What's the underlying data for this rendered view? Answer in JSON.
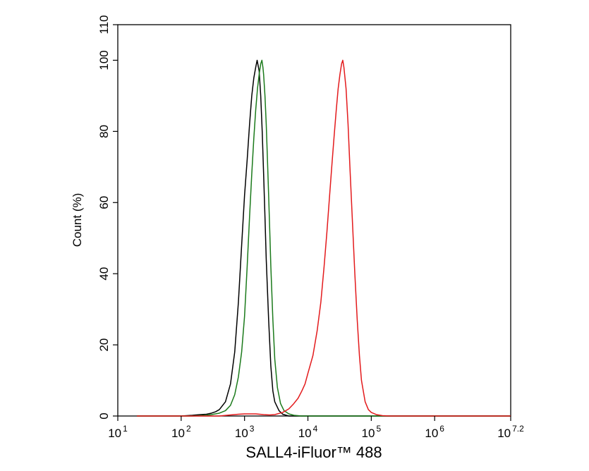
{
  "chart_data": {
    "type": "line",
    "title": "",
    "xlabel": "SALL4-iFluor™ 488",
    "ylabel": "Count  (%)",
    "x_scale": "log10",
    "xlim": [
      10,
      15848931.92
    ],
    "ylim": [
      0,
      110
    ],
    "x_ticks": [
      {
        "base": "10",
        "exp": "1",
        "value": 10
      },
      {
        "base": "10",
        "exp": "2",
        "value": 100
      },
      {
        "base": "10",
        "exp": "3",
        "value": 1000
      },
      {
        "base": "10",
        "exp": "4",
        "value": 10000
      },
      {
        "base": "10",
        "exp": "5",
        "value": 100000
      },
      {
        "base": "10",
        "exp": "6",
        "value": 1000000
      },
      {
        "base": "10",
        "exp": "7.2",
        "value": 15848931.92
      }
    ],
    "y_ticks": [
      {
        "label": "0",
        "value": 0
      },
      {
        "label": "20",
        "value": 20
      },
      {
        "label": "40",
        "value": 40
      },
      {
        "label": "60",
        "value": 60
      },
      {
        "label": "80",
        "value": 80
      },
      {
        "label": "100",
        "value": 100
      },
      {
        "label": "110",
        "value": 110
      }
    ],
    "grid": false,
    "legend": "none",
    "series": [
      {
        "color": "#000000",
        "points": [
          [
            20,
            0
          ],
          [
            100,
            0
          ],
          [
            150,
            0.2
          ],
          [
            200,
            0.4
          ],
          [
            250,
            0.5
          ],
          [
            300,
            0.8
          ],
          [
            350,
            1.2
          ],
          [
            400,
            1.8
          ],
          [
            500,
            4
          ],
          [
            600,
            9
          ],
          [
            700,
            18
          ],
          [
            800,
            32
          ],
          [
            900,
            48
          ],
          [
            1000,
            62
          ],
          [
            1100,
            72
          ],
          [
            1200,
            82
          ],
          [
            1300,
            90
          ],
          [
            1400,
            95
          ],
          [
            1500,
            98
          ],
          [
            1580,
            100
          ],
          [
            1700,
            97
          ],
          [
            1800,
            90
          ],
          [
            1900,
            80
          ],
          [
            2000,
            68
          ],
          [
            2100,
            56
          ],
          [
            2200,
            44
          ],
          [
            2400,
            27
          ],
          [
            2600,
            14
          ],
          [
            2800,
            7
          ],
          [
            3000,
            4
          ],
          [
            3500,
            1.5
          ],
          [
            4000,
            0.5
          ],
          [
            5000,
            0
          ],
          [
            15848931,
            0
          ]
        ]
      },
      {
        "color": "#1b7a1b",
        "points": [
          [
            20,
            0
          ],
          [
            150,
            0
          ],
          [
            250,
            0.2
          ],
          [
            300,
            0.4
          ],
          [
            400,
            0.8
          ],
          [
            500,
            1.5
          ],
          [
            600,
            3
          ],
          [
            700,
            6
          ],
          [
            800,
            11
          ],
          [
            900,
            18
          ],
          [
            1000,
            28
          ],
          [
            1100,
            42
          ],
          [
            1200,
            56
          ],
          [
            1300,
            68
          ],
          [
            1400,
            78
          ],
          [
            1500,
            86
          ],
          [
            1600,
            92
          ],
          [
            1700,
            96
          ],
          [
            1800,
            99
          ],
          [
            1880,
            100
          ],
          [
            1950,
            98
          ],
          [
            2000,
            96
          ],
          [
            2100,
            90
          ],
          [
            2200,
            82
          ],
          [
            2300,
            72
          ],
          [
            2400,
            62
          ],
          [
            2500,
            52
          ],
          [
            2600,
            42
          ],
          [
            2800,
            27
          ],
          [
            3000,
            16
          ],
          [
            3300,
            8
          ],
          [
            3700,
            3.5
          ],
          [
            4200,
            1.5
          ],
          [
            5000,
            0.6
          ],
          [
            6000,
            0.2
          ],
          [
            8000,
            0
          ],
          [
            15848931,
            0
          ]
        ]
      },
      {
        "color": "#e31a1c",
        "points": [
          [
            20,
            0
          ],
          [
            400,
            0
          ],
          [
            600,
            0.3
          ],
          [
            800,
            0.5
          ],
          [
            1000,
            0.6
          ],
          [
            1500,
            0.6
          ],
          [
            2000,
            0.4
          ],
          [
            2500,
            0.3
          ],
          [
            3000,
            0.4
          ],
          [
            4000,
            1
          ],
          [
            5000,
            2
          ],
          [
            6000,
            3.5
          ],
          [
            7000,
            5
          ],
          [
            8000,
            7
          ],
          [
            9000,
            9
          ],
          [
            10000,
            12
          ],
          [
            12000,
            17
          ],
          [
            14000,
            24
          ],
          [
            16000,
            32
          ],
          [
            18000,
            42
          ],
          [
            20000,
            52
          ],
          [
            22000,
            62
          ],
          [
            24000,
            71
          ],
          [
            26000,
            79
          ],
          [
            28000,
            86
          ],
          [
            30000,
            92
          ],
          [
            32000,
            96
          ],
          [
            34000,
            99
          ],
          [
            35500,
            100
          ],
          [
            37000,
            98
          ],
          [
            40000,
            92
          ],
          [
            43000,
            82
          ],
          [
            46000,
            70
          ],
          [
            50000,
            56
          ],
          [
            55000,
            40
          ],
          [
            60000,
            27
          ],
          [
            65000,
            17
          ],
          [
            70000,
            10
          ],
          [
            80000,
            4
          ],
          [
            90000,
            1.8
          ],
          [
            100000,
            1
          ],
          [
            120000,
            0.4
          ],
          [
            150000,
            0.1
          ],
          [
            200000,
            0
          ],
          [
            15848931,
            0
          ]
        ]
      }
    ]
  }
}
